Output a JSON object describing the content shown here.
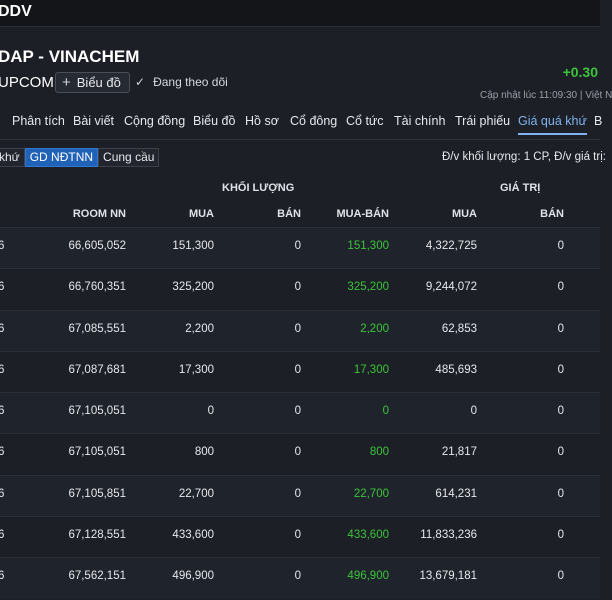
{
  "header": {
    "code_text": "DDV",
    "title": "DAP - VINACHEM",
    "exchange": "UPCOM",
    "chart_button_label": "Biểu đồ",
    "follow_label": "Đang theo dõi",
    "price_change": "+0.30",
    "update_text": "Cập nhật lúc  11:09:30 | Việt N"
  },
  "tabs": [
    {
      "label": "Phân tích"
    },
    {
      "label": "Bài viết"
    },
    {
      "label": "Cộng đồng"
    },
    {
      "label": "Biểu đồ"
    },
    {
      "label": "Hồ sơ"
    },
    {
      "label": "Cổ đông"
    },
    {
      "label": "Cổ tức"
    },
    {
      "label": "Tài chính"
    },
    {
      "label": "Trái phiếu"
    },
    {
      "label": "Giá quá khứ",
      "active": true
    },
    {
      "label": "B"
    }
  ],
  "subtabs": [
    {
      "label": "khứ"
    },
    {
      "label": "GD NĐTNN",
      "active": true
    },
    {
      "label": "Cung cầu"
    }
  ],
  "unit_note": "Đ/v khối lượng: 1 CP, Đ/v giá trị: ",
  "table": {
    "group_volume": "KHỐI LƯỢNG",
    "group_value": "GIÁ TRỊ",
    "headers": {
      "room": "ROOM NN",
      "mua": "MUA",
      "ban": "BÁN",
      "net": "MUA-BÁN",
      "vmua": "MUA",
      "vban": "BÁN"
    },
    "rows": [
      {
        "date": "6",
        "room": "66,605,052",
        "mua": "151,300",
        "ban": "0",
        "net": "151,300",
        "vmua": "4,322,725",
        "vban": "0"
      },
      {
        "date": "6",
        "room": "66,760,351",
        "mua": "325,200",
        "ban": "0",
        "net": "325,200",
        "vmua": "9,244,072",
        "vban": "0"
      },
      {
        "date": "6",
        "room": "67,085,551",
        "mua": "2,200",
        "ban": "0",
        "net": "2,200",
        "vmua": "62,853",
        "vban": "0"
      },
      {
        "date": "6",
        "room": "67,087,681",
        "mua": "17,300",
        "ban": "0",
        "net": "17,300",
        "vmua": "485,693",
        "vban": "0"
      },
      {
        "date": "6",
        "room": "67,105,051",
        "mua": "0",
        "ban": "0",
        "net": "0",
        "vmua": "0",
        "vban": "0"
      },
      {
        "date": "6",
        "room": "67,105,051",
        "mua": "800",
        "ban": "0",
        "net": "800",
        "vmua": "21,817",
        "vban": "0"
      },
      {
        "date": "6",
        "room": "67,105,851",
        "mua": "22,700",
        "ban": "0",
        "net": "22,700",
        "vmua": "614,231",
        "vban": "0"
      },
      {
        "date": "6",
        "room": "67,128,551",
        "mua": "433,600",
        "ban": "0",
        "net": "433,600",
        "vmua": "11,833,236",
        "vban": "0"
      },
      {
        "date": "6",
        "room": "67,562,151",
        "mua": "496,900",
        "ban": "0",
        "net": "496,900",
        "vmua": "13,679,181",
        "vban": "0"
      }
    ]
  },
  "colors": {
    "positive": "#3cc43a",
    "accent": "#7fb2ee",
    "active_button": "#1f62b8",
    "background": "#1c1f26"
  },
  "icons": {
    "chart_button": "plus-icon",
    "follow": "check-icon"
  }
}
